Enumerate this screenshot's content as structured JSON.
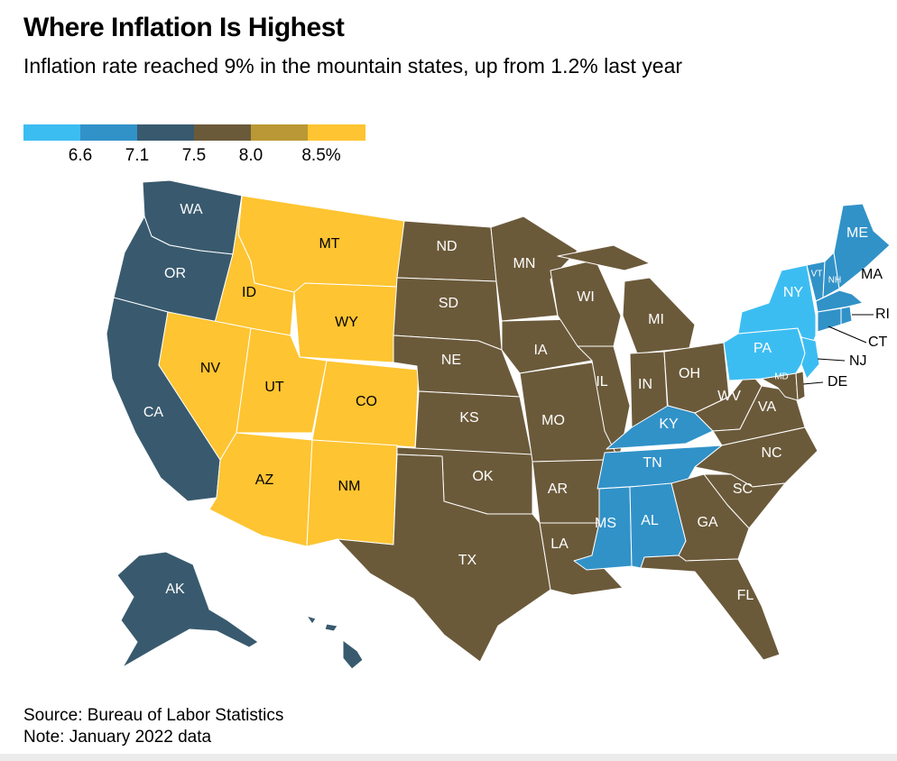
{
  "header": {
    "title": "Where Inflation Is Highest",
    "subtitle": "Inflation rate reached 9% in the mountain states, up from 1.2% last year"
  },
  "legend": {
    "bins": [
      {
        "color": "#3cbdf2"
      },
      {
        "color": "#3192c8"
      },
      {
        "color": "#395a6e"
      },
      {
        "color": "#6b5a3a"
      },
      {
        "color": "#b99835"
      },
      {
        "color": "#fec431"
      }
    ],
    "tick_labels": [
      "6.6",
      "7.1",
      "7.5",
      "8.0",
      "8.5%"
    ]
  },
  "map_data": {
    "region_colors": {
      "mountain": "#fec431",
      "central": "#6b5a3a",
      "pacific": "#395a6e",
      "east_south_central": "#3192c8",
      "middle_atlantic": "#3cbdf2",
      "new_england": "#3192c8",
      "south_atlantic": "#6b5a3a"
    },
    "state_labels": {
      "WA": "WA",
      "OR": "OR",
      "CA": "CA",
      "AK": "AK",
      "ID": "ID",
      "MT": "MT",
      "WY": "WY",
      "NV": "NV",
      "UT": "UT",
      "CO": "CO",
      "AZ": "AZ",
      "NM": "NM",
      "ND": "ND",
      "SD": "SD",
      "NE": "NE",
      "KS": "KS",
      "OK": "OK",
      "TX": "TX",
      "MN": "MN",
      "IA": "IA",
      "MO": "MO",
      "AR": "AR",
      "LA": "LA",
      "WI": "WI",
      "IL": "IL",
      "MI": "MI",
      "IN": "IN",
      "OH": "OH",
      "KY": "KY",
      "TN": "TN",
      "MS": "MS",
      "AL": "AL",
      "WV": "WV",
      "VA": "VA",
      "NC": "NC",
      "SC": "SC",
      "GA": "GA",
      "FL": "FL",
      "MD": "MD",
      "DE": "DE",
      "NY": "NY",
      "PA": "PA",
      "NJ": "NJ",
      "ME": "ME",
      "VT": "VT",
      "NH": "NH",
      "MA": "MA",
      "RI": "RI",
      "CT": "CT"
    }
  },
  "footer": {
    "source": "Source: Bureau of Labor Statistics",
    "note": "Note: January 2022 data"
  }
}
